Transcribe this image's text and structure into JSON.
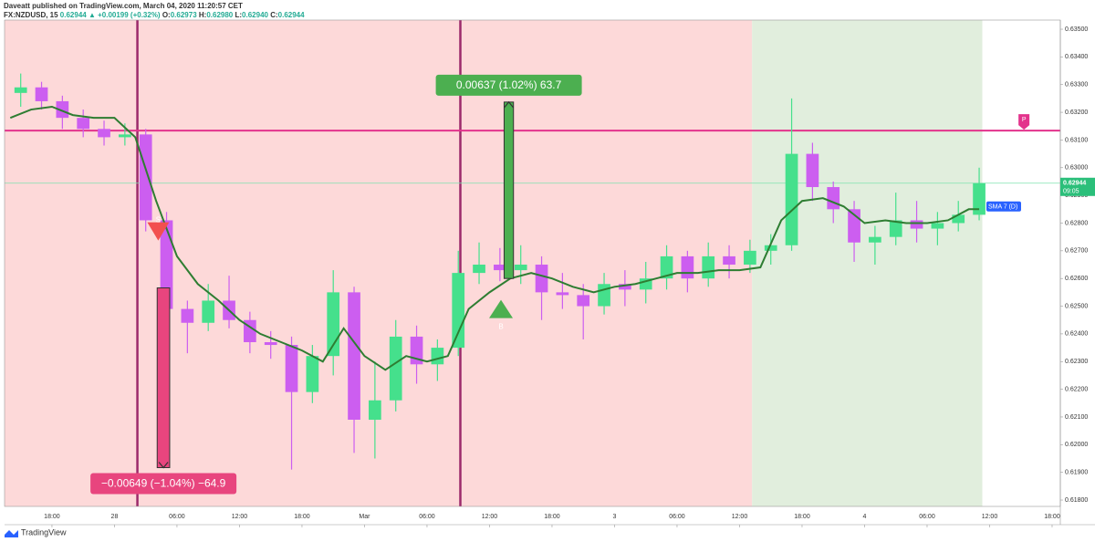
{
  "header": {
    "author": "Daveatt published on TradingView.com, March 04, 2020 11:20:57 CET",
    "symbol": "FX:NZDUSD, 15",
    "price": "0.62944",
    "change": "▲ +0.00199 (+0.32%)",
    "o_label": "O:",
    "o": "0.62973",
    "h_label": "H:",
    "h": "0.62980",
    "l_label": "L:",
    "l": "0.62940",
    "c_label": "C:",
    "c": "0.62944"
  },
  "footer": {
    "brand": "TradingView"
  },
  "chart_data": {
    "type": "candlestick",
    "x": [
      15,
      17,
      19,
      21,
      23,
      25,
      27,
      29,
      31,
      33,
      35,
      37,
      39,
      41,
      43,
      45,
      47,
      49,
      51,
      53,
      55,
      57,
      59,
      61,
      63,
      65,
      67,
      69,
      71,
      73,
      75,
      77,
      79,
      81,
      83,
      85,
      87,
      89,
      91,
      93,
      95,
      97,
      99,
      101,
      103,
      105,
      107
    ],
    "open": [
      0.6327,
      0.6329,
      0.6324,
      0.6318,
      0.6314,
      0.6311,
      0.6312,
      0.6281,
      0.6249,
      0.6244,
      0.6252,
      0.6245,
      0.6237,
      0.6236,
      0.6219,
      0.6232,
      0.6255,
      0.6209,
      0.6216,
      0.6239,
      0.6229,
      0.6235,
      0.6262,
      0.6265,
      0.6263,
      0.6265,
      0.6255,
      0.6254,
      0.625,
      0.6258,
      0.6256,
      0.626,
      0.6268,
      0.626,
      0.6268,
      0.6265,
      0.627,
      0.6272,
      0.6305,
      0.6293,
      0.6285,
      0.6273,
      0.6275,
      0.6281,
      0.6278,
      0.628,
      0.6283
    ],
    "high": [
      0.6334,
      0.6331,
      0.6326,
      0.6321,
      0.6317,
      0.6316,
      0.6314,
      0.6284,
      0.6252,
      0.6258,
      0.6261,
      0.6248,
      0.6241,
      0.6239,
      0.6236,
      0.6263,
      0.6257,
      0.623,
      0.6245,
      0.6243,
      0.6238,
      0.627,
      0.6273,
      0.6271,
      0.6272,
      0.6268,
      0.6262,
      0.6258,
      0.6262,
      0.6263,
      0.6266,
      0.6272,
      0.627,
      0.6273,
      0.6272,
      0.6274,
      0.6276,
      0.6325,
      0.6309,
      0.6295,
      0.6288,
      0.6279,
      0.6291,
      0.6288,
      0.6284,
      0.6288,
      0.63
    ],
    "low": [
      0.6322,
      0.6321,
      0.6314,
      0.6311,
      0.6308,
      0.6308,
      0.6277,
      0.6245,
      0.6233,
      0.6241,
      0.6242,
      0.6233,
      0.6231,
      0.6191,
      0.6215,
      0.6225,
      0.6197,
      0.6195,
      0.6212,
      0.6222,
      0.6223,
      0.6232,
      0.6258,
      0.6259,
      0.6258,
      0.6245,
      0.6249,
      0.6238,
      0.6247,
      0.625,
      0.6251,
      0.6256,
      0.6255,
      0.6257,
      0.626,
      0.6262,
      0.6265,
      0.627,
      0.6288,
      0.628,
      0.6266,
      0.6265,
      0.6272,
      0.6273,
      0.6272,
      0.6277,
      0.6281
    ],
    "close": [
      0.6329,
      0.6324,
      0.6318,
      0.6314,
      0.6311,
      0.6312,
      0.6281,
      0.6249,
      0.6244,
      0.6252,
      0.6245,
      0.6237,
      0.6236,
      0.6219,
      0.6232,
      0.6255,
      0.6209,
      0.6216,
      0.6239,
      0.6229,
      0.6235,
      0.6262,
      0.6265,
      0.6263,
      0.6265,
      0.6255,
      0.6254,
      0.625,
      0.6258,
      0.6256,
      0.626,
      0.6268,
      0.626,
      0.6268,
      0.6265,
      0.627,
      0.6272,
      0.6305,
      0.6293,
      0.6285,
      0.6273,
      0.6275,
      0.6281,
      0.6278,
      0.628,
      0.6283,
      0.62944
    ],
    "up_color": "#45e08c",
    "down_color": "#cc5ef0",
    "sma": {
      "name": "SMA 7 (D)",
      "color": "#2e7d32",
      "x": [
        14,
        16,
        18,
        20,
        22,
        24,
        26,
        28,
        30,
        32,
        34,
        36,
        38,
        40,
        42,
        44,
        46,
        48,
        50,
        52,
        54,
        56,
        58,
        60,
        62,
        64,
        66,
        68,
        70,
        72,
        74,
        76,
        78,
        80,
        82,
        84,
        86,
        88,
        90,
        92,
        94,
        96,
        98,
        100,
        102,
        104,
        106,
        107
      ],
      "values": [
        0.6318,
        0.6321,
        0.6322,
        0.6319,
        0.6318,
        0.6318,
        0.6311,
        0.6288,
        0.6268,
        0.6258,
        0.6252,
        0.6245,
        0.624,
        0.6237,
        0.6234,
        0.623,
        0.6242,
        0.6232,
        0.6227,
        0.6232,
        0.623,
        0.6232,
        0.6249,
        0.6255,
        0.626,
        0.6262,
        0.626,
        0.6257,
        0.6255,
        0.6257,
        0.6258,
        0.626,
        0.6262,
        0.6262,
        0.6263,
        0.6263,
        0.6264,
        0.6281,
        0.6288,
        0.6289,
        0.6286,
        0.628,
        0.6281,
        0.628,
        0.628,
        0.6281,
        0.6285,
        0.6285
      ]
    },
    "zones": [
      {
        "x": [
          13.45,
          85.2
        ],
        "color": "#fdd9d9"
      },
      {
        "x": [
          85.2,
          107.3
        ],
        "color": "#e1eedd"
      }
    ],
    "vlines": [
      26.2,
      57.2
    ],
    "vline_color": "#9c2a6b",
    "hline": 0.63134,
    "hline_color": "#e3338c",
    "last_price": 0.62944,
    "last_price_label": "0.62944",
    "last_time": "09:05",
    "last_color": "#2bbf7a",
    "measures": [
      {
        "x": [
          28.1,
          29.3
        ],
        "from": 0.62566,
        "to": 0.61917,
        "label": "−0.00649 (−1.04%) −64.9",
        "color": "#e8457e"
      },
      {
        "x": [
          61.4,
          62.3
        ],
        "from": 0.626,
        "to": 0.63237,
        "label": "0.00637 (1.02%) 63.7",
        "color": "#4caf50"
      }
    ],
    "signals": [
      {
        "label": "S",
        "x": 28.2,
        "price": 0.6277,
        "dir": "down",
        "color": "#f25050"
      },
      {
        "label": "B",
        "x": 61.1,
        "price": 0.6249,
        "dir": "up",
        "color": "#4caf50"
      },
      {
        "label": "P",
        "x": 111.3,
        "price": 0.63134,
        "dir": "flag",
        "color": "#e3338c"
      }
    ],
    "xlim": [
      13.45,
      114.79
    ],
    "ylim": [
      0.61777,
      0.63533
    ],
    "xticks": [
      {
        "value": 18,
        "label": "18:00"
      },
      {
        "value": 24,
        "label": "28"
      },
      {
        "value": 30,
        "label": "06:00"
      },
      {
        "value": 36,
        "label": "12:00"
      },
      {
        "value": 42,
        "label": "18:00"
      },
      {
        "value": 48,
        "label": "Mar"
      },
      {
        "value": 54,
        "label": "06:00"
      },
      {
        "value": 60,
        "label": "12:00"
      },
      {
        "value": 66,
        "label": "18:00"
      },
      {
        "value": 72,
        "label": "3"
      },
      {
        "value": 78,
        "label": "06:00"
      },
      {
        "value": 84,
        "label": "12:00"
      },
      {
        "value": 90,
        "label": "18:00"
      },
      {
        "value": 96,
        "label": "4"
      },
      {
        "value": 102,
        "label": "06:00"
      },
      {
        "value": 108,
        "label": "12:00"
      },
      {
        "value": 114,
        "label": "18:00"
      }
    ],
    "yticks": [
      {
        "value": 0.618,
        "label": "0.61800"
      },
      {
        "value": 0.619,
        "label": "0.61900"
      },
      {
        "value": 0.62,
        "label": "0.62000"
      },
      {
        "value": 0.621,
        "label": "0.62100"
      },
      {
        "value": 0.622,
        "label": "0.62200"
      },
      {
        "value": 0.623,
        "label": "0.62300"
      },
      {
        "value": 0.624,
        "label": "0.62400"
      },
      {
        "value": 0.625,
        "label": "0.62500"
      },
      {
        "value": 0.626,
        "label": "0.62600"
      },
      {
        "value": 0.627,
        "label": "0.62700"
      },
      {
        "value": 0.628,
        "label": "0.62800"
      },
      {
        "value": 0.629,
        "label": "0.62900"
      },
      {
        "value": 0.63,
        "label": "0.63000"
      },
      {
        "value": 0.631,
        "label": "0.63100"
      },
      {
        "value": 0.632,
        "label": "0.63200"
      },
      {
        "value": 0.633,
        "label": "0.63300"
      },
      {
        "value": 0.634,
        "label": "0.63400"
      },
      {
        "value": 0.635,
        "label": "0.63500"
      }
    ]
  }
}
